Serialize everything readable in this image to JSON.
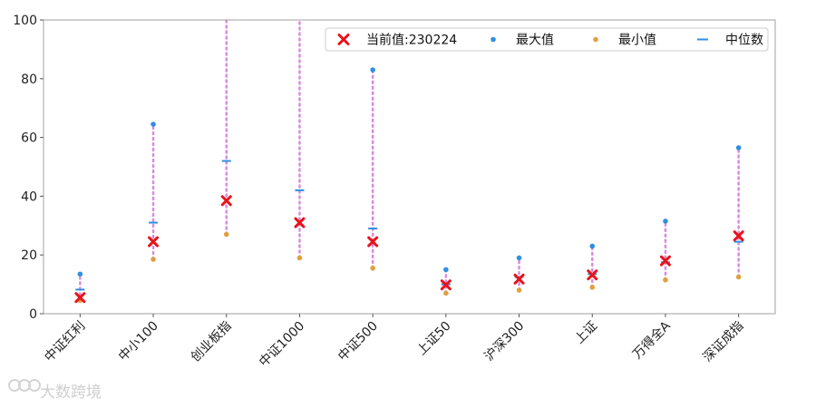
{
  "chart_data": {
    "type": "scatter",
    "categories": [
      "中证红利",
      "中小100",
      "创业板指",
      "中证1000",
      "中证500",
      "上证50",
      "沪深300",
      "上证",
      "万得全A",
      "深证成指"
    ],
    "ylim": [
      0,
      100
    ],
    "yticks": [
      0,
      20,
      40,
      60,
      80,
      100
    ],
    "legend_position": "top-right",
    "grid": false,
    "series": [
      {
        "name": "当前值:230224",
        "marker": "x",
        "color": "#e8141c",
        "values": [
          5.5,
          24.5,
          38.5,
          31,
          24.5,
          9.8,
          11.8,
          13.2,
          18,
          26.5
        ]
      },
      {
        "name": "最大值",
        "marker": "dot",
        "color": "#2f8fe0",
        "values": [
          13.5,
          64.5,
          100,
          100,
          83,
          15,
          19,
          23,
          31.5,
          56.5
        ]
      },
      {
        "name": "最小值",
        "marker": "dot",
        "color": "#e0a040",
        "values": [
          4.5,
          18.5,
          27,
          19,
          15.5,
          7,
          8,
          9,
          11.5,
          12.5
        ]
      },
      {
        "name": "中位数",
        "marker": "dash",
        "color": "#2f8fe0",
        "values": [
          8.2,
          31,
          52,
          42,
          29,
          10,
          12.5,
          13.5,
          17.5,
          24.5
        ]
      }
    ],
    "range_line_color": "#d88be0"
  },
  "watermark": {
    "text": "大数跨境"
  }
}
